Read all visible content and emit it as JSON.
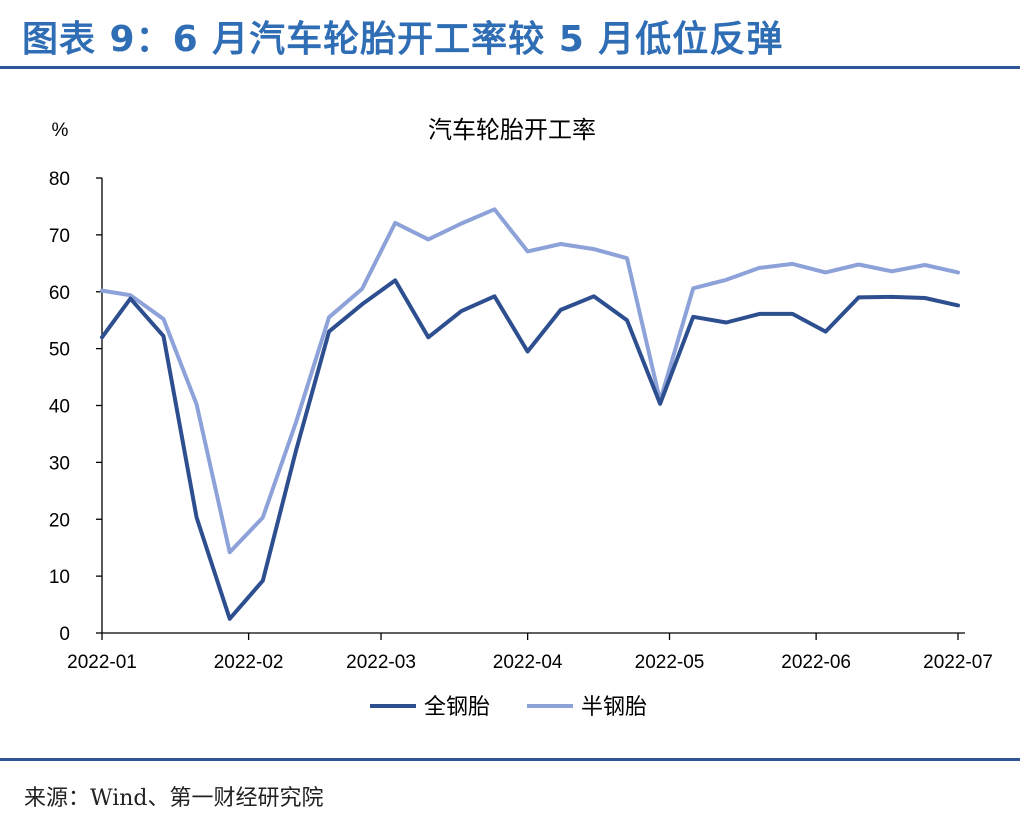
{
  "header": {
    "title": "图表 9：6 月汽车轮胎开工率较 5 月低位反弹"
  },
  "footer": {
    "source": "来源：Wind、第一财经研究院"
  },
  "chart_data": {
    "type": "line",
    "title": "汽车轮胎开工率",
    "unit_label": "%",
    "xlabel": "",
    "ylabel": "",
    "ylim": [
      0,
      80
    ],
    "yticks": [
      0,
      10,
      20,
      30,
      40,
      50,
      60,
      70,
      80
    ],
    "x_tick_labels": [
      "2022-01",
      "2022-02",
      "2022-03",
      "2022-04",
      "2022-05",
      "2022-06",
      "2022-07"
    ],
    "x": [
      "2022-01-01",
      "2022-01-07",
      "2022-01-14",
      "2022-01-21",
      "2022-01-28",
      "2022-02-04",
      "2022-02-11",
      "2022-02-18",
      "2022-02-25",
      "2022-03-04",
      "2022-03-11",
      "2022-03-18",
      "2022-03-25",
      "2022-04-01",
      "2022-04-08",
      "2022-04-15",
      "2022-04-22",
      "2022-04-29",
      "2022-05-06",
      "2022-05-13",
      "2022-05-20",
      "2022-05-27",
      "2022-06-03",
      "2022-06-10",
      "2022-06-17",
      "2022-06-24",
      "2022-07-01"
    ],
    "grid": false,
    "legend": "bottom",
    "colors": {
      "全钢胎": "#2e4f8f",
      "半钢胎": "#8da2d9",
      "axis": "#000000",
      "title_blue": "#2f6db5",
      "rule": "#2f5597"
    },
    "series": [
      {
        "name": "全钢胎",
        "values": [
          52.0,
          58.8,
          52.2,
          20.3,
          2.5,
          9.2,
          32.0,
          53.0,
          57.8,
          62.0,
          52.0,
          56.6,
          59.2,
          49.5,
          56.8,
          59.2,
          55.0,
          40.3,
          55.6,
          54.6,
          56.1,
          56.1,
          53.0,
          59.0,
          59.1,
          58.9,
          57.6
        ]
      },
      {
        "name": "半钢胎",
        "values": [
          60.2,
          59.4,
          55.2,
          40.2,
          14.2,
          20.3,
          37.0,
          55.5,
          60.5,
          72.1,
          69.2,
          72.0,
          74.5,
          67.1,
          68.4,
          67.5,
          65.9,
          40.8,
          60.6,
          62.1,
          64.2,
          64.9,
          63.4,
          64.8,
          63.6,
          64.7,
          63.4
        ]
      }
    ]
  }
}
